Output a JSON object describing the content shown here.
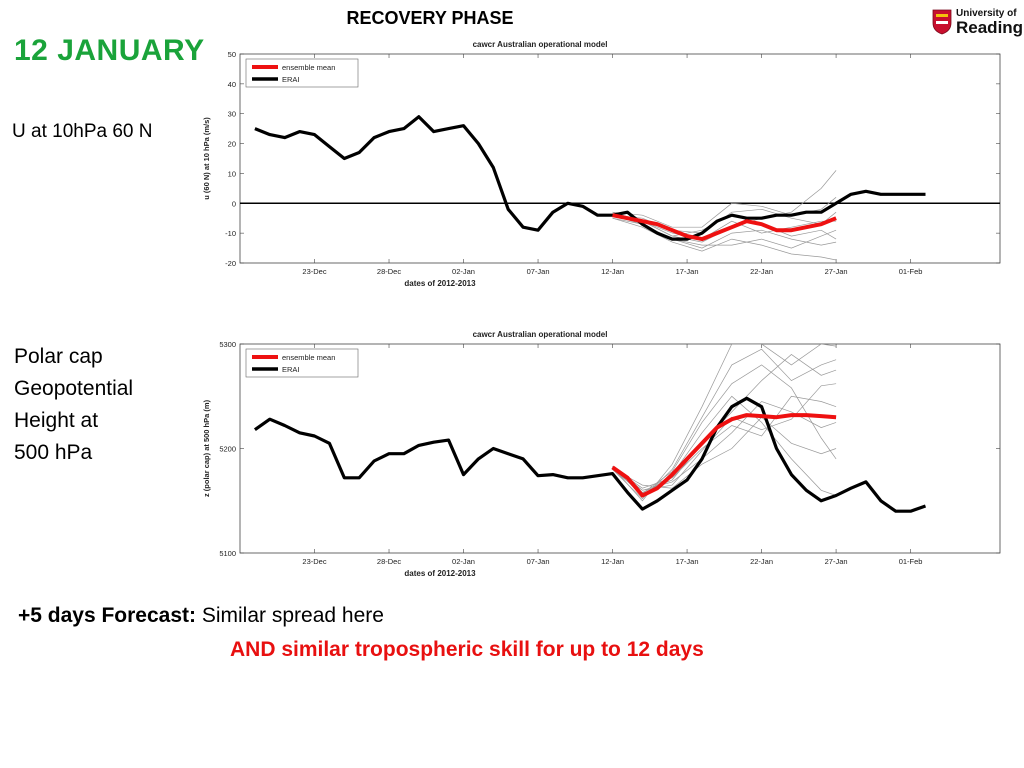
{
  "heading": "RECOVERY PHASE",
  "date_title": "12  JANUARY",
  "logo": {
    "line1": "University of",
    "line2": "Reading"
  },
  "label1": "U at 10hPa 60 N",
  "label2_lines": [
    "Polar cap",
    "Geopotential",
    "Height at",
    "500 hPa"
  ],
  "forecast": {
    "bold": "+5 days Forecast:",
    "text": " Similar spread here"
  },
  "skill": "AND similar tropospheric skill for up to 12 days",
  "colors": {
    "title_green": "#1aa33a",
    "skill_red": "#e81010",
    "ensemble_mean": "#ee1111",
    "erai": "#000000",
    "members": "#999999"
  },
  "chart_data": [
    {
      "type": "line",
      "title": "cawcr Australian operational model",
      "xlabel": "dates of 2012-2013",
      "ylabel": "u (60 N) at 10 hPa (m/s)",
      "xlim": [
        -13,
        38
      ],
      "ylim": [
        -20,
        50
      ],
      "xticks": [
        {
          "x": -8,
          "label": "23-Dec"
        },
        {
          "x": -3,
          "label": "28-Dec"
        },
        {
          "x": 2,
          "label": "02-Jan"
        },
        {
          "x": 7,
          "label": "07-Jan"
        },
        {
          "x": 12,
          "label": "12-Jan"
        },
        {
          "x": 17,
          "label": "17-Jan"
        },
        {
          "x": 22,
          "label": "22-Jan"
        },
        {
          "x": 27,
          "label": "27-Jan"
        },
        {
          "x": 32,
          "label": "01-Feb"
        }
      ],
      "yticks": [
        -20,
        -10,
        0,
        10,
        20,
        30,
        40,
        50
      ],
      "zero_line": true,
      "legend": "top-left",
      "series": [
        {
          "name": "ensemble mean",
          "color": "#ee1111",
          "x": [
            12,
            13,
            14,
            15,
            16,
            17,
            18,
            19,
            20,
            21,
            22,
            23,
            24,
            25,
            26,
            27
          ],
          "y": [
            -4,
            -5,
            -6,
            -7,
            -9,
            -11,
            -12,
            -10,
            -8,
            -6,
            -7,
            -9,
            -9,
            -8,
            -7,
            -5
          ]
        },
        {
          "name": "ERAI",
          "color": "#000000",
          "x": [
            -12,
            -11,
            -10,
            -9,
            -8,
            -7,
            -6,
            -5,
            -4,
            -3,
            -2,
            -1,
            0,
            1,
            2,
            3,
            4,
            5,
            6,
            7,
            8,
            9,
            10,
            11,
            12,
            13,
            14,
            15,
            16,
            17,
            18,
            19,
            20,
            21,
            22,
            23,
            24,
            25,
            26,
            27,
            28,
            29,
            30,
            31,
            32,
            33
          ],
          "y": [
            25,
            23,
            22,
            24,
            23,
            19,
            15,
            17,
            22,
            24,
            25,
            29,
            24,
            25,
            26,
            20,
            12,
            -2,
            -8,
            -9,
            -3,
            0,
            -1,
            -4,
            -4,
            -3,
            -7,
            -10,
            -12,
            -12,
            -10,
            -6,
            -4,
            -5,
            -5,
            -4,
            -4,
            -3,
            -3,
            0,
            3,
            4,
            3,
            3,
            3,
            3
          ]
        }
      ],
      "ensemble_members": [
        {
          "x": [
            12,
            14,
            16,
            18,
            20,
            22,
            24,
            26,
            27
          ],
          "y": [
            -4,
            -7,
            -12,
            -15,
            -10,
            -9,
            -12,
            -14,
            -13
          ]
        },
        {
          "x": [
            12,
            14,
            16,
            18,
            20,
            22,
            24,
            26,
            27
          ],
          "y": [
            -4,
            -5,
            -9,
            -10,
            -3,
            -2,
            -5,
            -7,
            -3
          ]
        },
        {
          "x": [
            12,
            14,
            16,
            18,
            20,
            22,
            24,
            26,
            27
          ],
          "y": [
            -3,
            -6,
            -11,
            -13,
            -8,
            -5,
            -3,
            5,
            11
          ]
        },
        {
          "x": [
            12,
            14,
            16,
            18,
            20,
            22,
            24,
            26,
            27
          ],
          "y": [
            -5,
            -8,
            -13,
            -16,
            -12,
            -14,
            -17,
            -18,
            -19
          ]
        },
        {
          "x": [
            12,
            14,
            16,
            18,
            20,
            22,
            24,
            26,
            27
          ],
          "y": [
            -4,
            -6,
            -10,
            -12,
            -6,
            -10,
            -8,
            -6,
            -6
          ]
        },
        {
          "x": [
            12,
            14,
            16,
            18,
            20,
            22,
            24,
            26,
            27
          ],
          "y": [
            -3,
            -4,
            -8,
            -8,
            0,
            -1,
            -4,
            -2,
            2
          ]
        },
        {
          "x": [
            12,
            14,
            16,
            18,
            20,
            22,
            24,
            26,
            27
          ],
          "y": [
            -5,
            -7,
            -12,
            -14,
            -14,
            -12,
            -15,
            -11,
            -9
          ]
        },
        {
          "x": [
            12,
            14,
            16,
            18,
            20,
            22,
            24,
            26,
            27
          ],
          "y": [
            -4,
            -6,
            -11,
            -9,
            -4,
            -7,
            -11,
            -9,
            -12
          ]
        }
      ]
    },
    {
      "type": "line",
      "title": "cawcr Australian operational model",
      "xlabel": "dates of 2012-2013",
      "ylabel": "z (polar cap) at 500 hPa (m)",
      "xlim": [
        -13,
        38
      ],
      "ylim": [
        5100,
        5300
      ],
      "xticks": [
        {
          "x": -8,
          "label": "23-Dec"
        },
        {
          "x": -3,
          "label": "28-Dec"
        },
        {
          "x": 2,
          "label": "02-Jan"
        },
        {
          "x": 7,
          "label": "07-Jan"
        },
        {
          "x": 12,
          "label": "12-Jan"
        },
        {
          "x": 17,
          "label": "17-Jan"
        },
        {
          "x": 22,
          "label": "22-Jan"
        },
        {
          "x": 27,
          "label": "27-Jan"
        },
        {
          "x": 32,
          "label": "01-Feb"
        }
      ],
      "yticks": [
        5100,
        5200,
        5300
      ],
      "zero_line": false,
      "legend": "top-left",
      "series": [
        {
          "name": "ensemble mean",
          "color": "#ee1111",
          "x": [
            12,
            13,
            14,
            15,
            16,
            17,
            18,
            19,
            20,
            21,
            22,
            23,
            24,
            25,
            26,
            27
          ],
          "y": [
            5182,
            5172,
            5155,
            5162,
            5175,
            5190,
            5205,
            5220,
            5228,
            5232,
            5231,
            5230,
            5232,
            5232,
            5231,
            5230
          ]
        },
        {
          "name": "ERAI",
          "color": "#000000",
          "x": [
            -12,
            -11,
            -10,
            -9,
            -8,
            -7,
            -6,
            -5,
            -4,
            -3,
            -2,
            -1,
            0,
            1,
            2,
            3,
            4,
            5,
            6,
            7,
            8,
            9,
            10,
            11,
            12,
            13,
            14,
            15,
            16,
            17,
            18,
            19,
            20,
            21,
            22,
            23,
            24,
            25,
            26,
            27,
            28,
            29,
            30,
            31,
            32,
            33
          ],
          "y": [
            5218,
            5228,
            5222,
            5215,
            5212,
            5205,
            5172,
            5172,
            5188,
            5195,
            5195,
            5203,
            5206,
            5208,
            5175,
            5190,
            5200,
            5195,
            5190,
            5174,
            5175,
            5172,
            5172,
            5174,
            5176,
            5158,
            5142,
            5150,
            5160,
            5170,
            5190,
            5220,
            5240,
            5248,
            5240,
            5200,
            5175,
            5160,
            5150,
            5155,
            5162,
            5168,
            5150,
            5140,
            5140,
            5145
          ]
        }
      ],
      "ensemble_members": [
        {
          "x": [
            12,
            14,
            16,
            18,
            20,
            22,
            24,
            26,
            27
          ],
          "y": [
            5180,
            5152,
            5180,
            5230,
            5280,
            5295,
            5265,
            5280,
            5285
          ]
        },
        {
          "x": [
            12,
            14,
            16,
            18,
            20,
            22,
            24,
            26,
            27
          ],
          "y": [
            5180,
            5160,
            5168,
            5190,
            5215,
            5245,
            5235,
            5220,
            5225
          ]
        },
        {
          "x": [
            12,
            14,
            16,
            18,
            20,
            22,
            24,
            26,
            27
          ],
          "y": [
            5182,
            5155,
            5175,
            5215,
            5250,
            5225,
            5190,
            5160,
            5155
          ]
        },
        {
          "x": [
            12,
            14,
            16,
            18,
            20,
            22,
            24,
            26,
            27
          ],
          "y": [
            5183,
            5158,
            5170,
            5205,
            5235,
            5265,
            5290,
            5270,
            5275
          ]
        },
        {
          "x": [
            12,
            14,
            16,
            18,
            20,
            22,
            24,
            26,
            27
          ],
          "y": [
            5181,
            5165,
            5162,
            5185,
            5200,
            5230,
            5205,
            5195,
            5200
          ]
        },
        {
          "x": [
            12,
            14,
            16,
            18,
            20,
            22,
            24,
            26,
            27
          ],
          "y": [
            5182,
            5150,
            5185,
            5240,
            5300,
            5300,
            5280,
            5300,
            5298
          ]
        },
        {
          "x": [
            12,
            14,
            16,
            18,
            20,
            22,
            24,
            26,
            27
          ],
          "y": [
            5182,
            5162,
            5172,
            5200,
            5222,
            5212,
            5250,
            5245,
            5240
          ]
        },
        {
          "x": [
            12,
            14,
            16,
            18,
            20,
            22,
            24,
            26,
            27
          ],
          "y": [
            5180,
            5157,
            5178,
            5225,
            5262,
            5280,
            5258,
            5210,
            5190
          ]
        },
        {
          "x": [
            12,
            14,
            16,
            18,
            20,
            22,
            24,
            26,
            27
          ],
          "y": [
            5183,
            5160,
            5165,
            5198,
            5230,
            5218,
            5228,
            5260,
            5262
          ]
        }
      ]
    }
  ]
}
